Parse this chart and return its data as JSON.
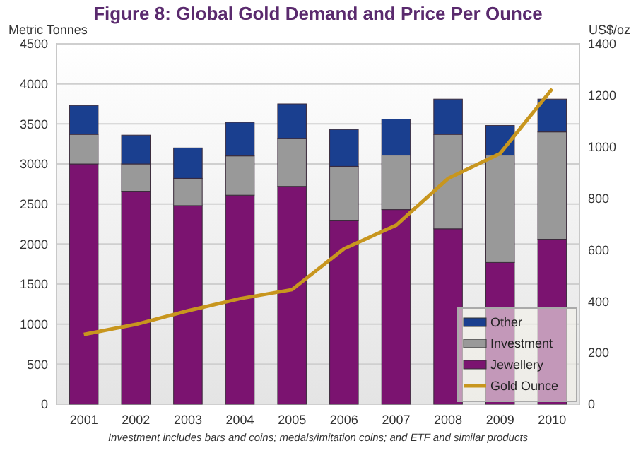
{
  "chart_data": {
    "type": "bar",
    "title": "Figure 8: Global Gold Demand and Price Per Ounce",
    "ylabel": "Metric Tonnes",
    "y2label": "US$/oz",
    "categories": [
      "2001",
      "2002",
      "2003",
      "2004",
      "2005",
      "2006",
      "2007",
      "2008",
      "2009",
      "2010"
    ],
    "stacked": true,
    "series": [
      {
        "name": "Jewellery",
        "color": "#7b1370",
        "values": [
          3000,
          2660,
          2480,
          2610,
          2720,
          2290,
          2430,
          2190,
          1770,
          2060
        ]
      },
      {
        "name": "Investment",
        "color": "#999999",
        "values": [
          370,
          340,
          340,
          490,
          600,
          680,
          680,
          1180,
          1340,
          1340
        ]
      },
      {
        "name": "Other",
        "color": "#1a3f8f",
        "values": [
          360,
          360,
          380,
          420,
          430,
          460,
          450,
          440,
          370,
          410
        ]
      },
      {
        "name": "Gold Ounce",
        "type": "line",
        "axis": "y2",
        "color": "#c8961e",
        "values": [
          271,
          310,
          363,
          410,
          445,
          604,
          695,
          877,
          974,
          1225
        ]
      }
    ],
    "ylim": [
      0,
      4500
    ],
    "yticks": [
      0,
      500,
      1000,
      1500,
      2000,
      2500,
      3000,
      3500,
      4000,
      4500
    ],
    "y2lim": [
      0,
      1400
    ],
    "y2ticks": [
      0,
      200,
      400,
      600,
      800,
      1000,
      1200,
      1400
    ],
    "grid": "y",
    "legend": "bottom right",
    "annotations": [
      "Investment includes bars and coins; medals/imitation coins; and ETF and similar products"
    ]
  }
}
